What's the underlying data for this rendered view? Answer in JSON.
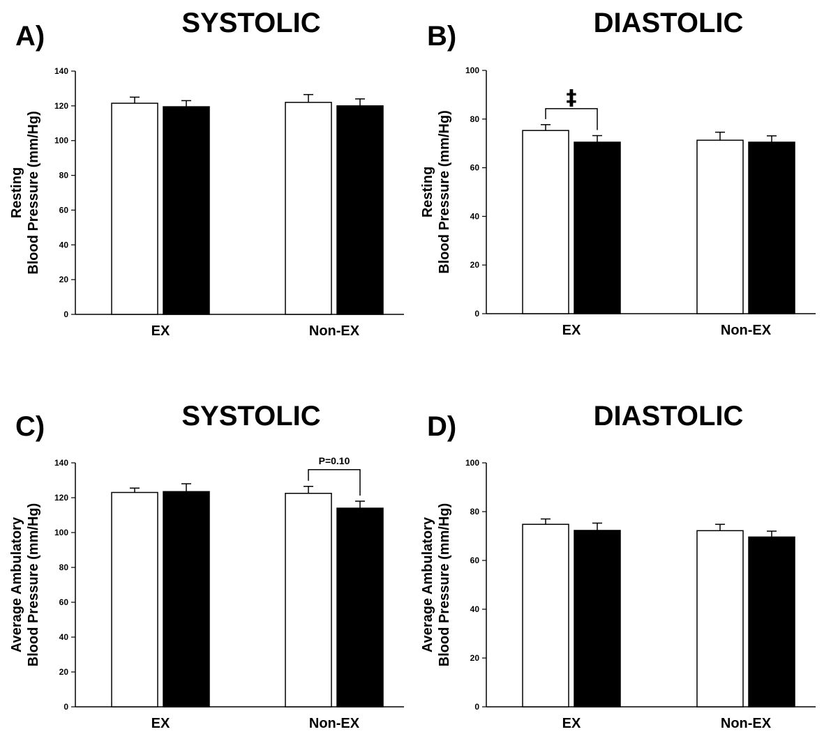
{
  "chart_data": [
    {
      "type": "bar",
      "panel_label": "A)",
      "title": "SYSTOLIC",
      "ylabel_lines": [
        "Resting",
        "Blood Pressure (mm/Hg)"
      ],
      "categories": [
        "EX",
        "Non-EX"
      ],
      "ylim": [
        0,
        140
      ],
      "yticks": [
        0,
        20,
        40,
        60,
        80,
        100,
        120,
        140
      ],
      "series": [
        {
          "fill": "#ffffff",
          "values": [
            121.5,
            122
          ],
          "errors": [
            3.5,
            4.5
          ]
        },
        {
          "fill": "#000000",
          "values": [
            119.5,
            120
          ],
          "errors": [
            3.5,
            4
          ]
        }
      ],
      "annotation": null
    },
    {
      "type": "bar",
      "panel_label": "B)",
      "title": "DIASTOLIC",
      "ylabel_lines": [
        "Resting",
        "Blood Pressure (mm/Hg)"
      ],
      "categories": [
        "EX",
        "Non-EX"
      ],
      "ylim": [
        0,
        100
      ],
      "yticks": [
        0,
        20,
        40,
        60,
        80,
        100
      ],
      "series": [
        {
          "fill": "#ffffff",
          "values": [
            75.3,
            71.3
          ],
          "errors": [
            2.4,
            3.3
          ]
        },
        {
          "fill": "#000000",
          "values": [
            70.5,
            70.5
          ],
          "errors": [
            2.7,
            2.6
          ]
        }
      ],
      "annotation": {
        "category_index": 0,
        "text": "‡",
        "style": "symbol"
      }
    },
    {
      "type": "bar",
      "panel_label": "C)",
      "title": "SYSTOLIC",
      "ylabel_lines": [
        "Average Ambulatory",
        "Blood Pressure (mm/Hg)"
      ],
      "categories": [
        "EX",
        "Non-EX"
      ],
      "ylim": [
        0,
        140
      ],
      "yticks": [
        0,
        20,
        40,
        60,
        80,
        100,
        120,
        140
      ],
      "series": [
        {
          "fill": "#ffffff",
          "values": [
            123,
            122.5
          ],
          "errors": [
            2.5,
            4
          ]
        },
        {
          "fill": "#000000",
          "values": [
            123.5,
            114
          ],
          "errors": [
            4.5,
            4
          ]
        }
      ],
      "annotation": {
        "category_index": 1,
        "text": "P=0.10",
        "style": "text"
      }
    },
    {
      "type": "bar",
      "panel_label": "D)",
      "title": "DIASTOLIC",
      "ylabel_lines": [
        "Average Ambulatory",
        "Blood Pressure (mm/Hg)"
      ],
      "categories": [
        "EX",
        "Non-EX"
      ],
      "ylim": [
        0,
        100
      ],
      "yticks": [
        0,
        20,
        40,
        60,
        80,
        100
      ],
      "series": [
        {
          "fill": "#ffffff",
          "values": [
            74.8,
            72.2
          ],
          "errors": [
            2.2,
            2.6
          ]
        },
        {
          "fill": "#000000",
          "values": [
            72.3,
            69.6
          ],
          "errors": [
            3,
            2.4
          ]
        }
      ],
      "annotation": null
    }
  ]
}
